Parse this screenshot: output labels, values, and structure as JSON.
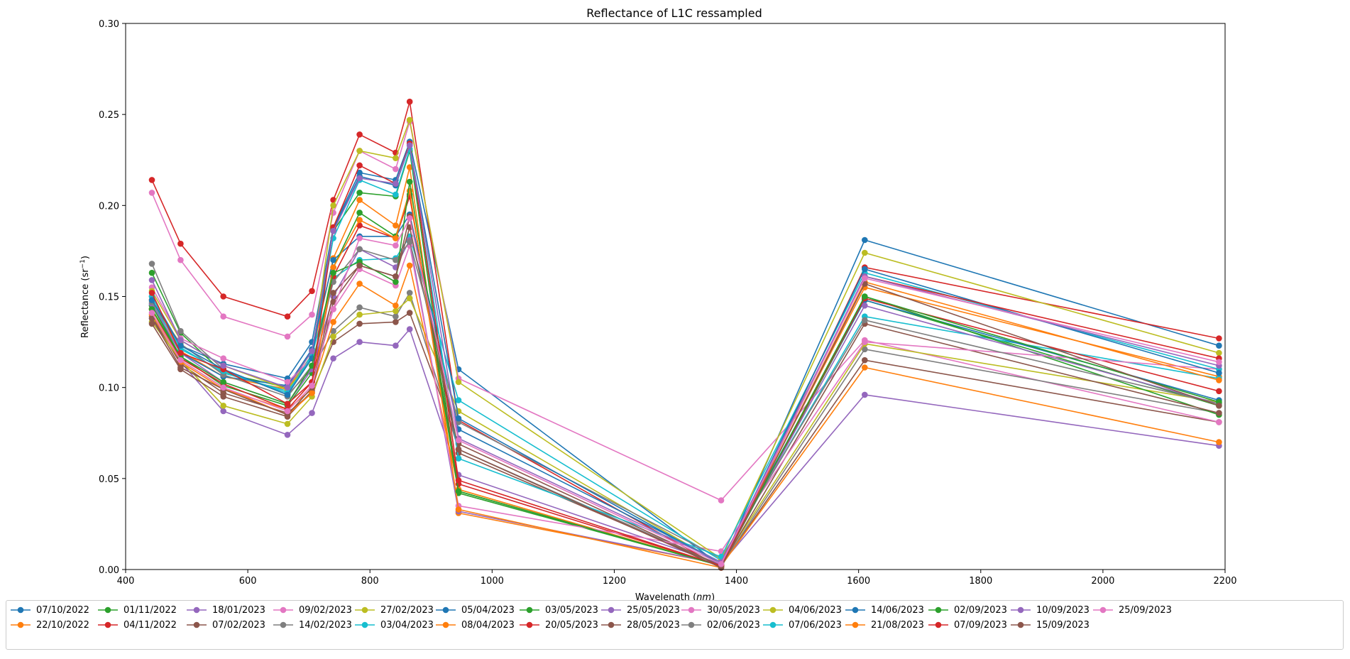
{
  "chart_data": {
    "type": "line",
    "title": "Reflectance of L1C ressampled",
    "xlabel": "Wavelength (nm)",
    "xlabel_parts": {
      "prefix": "Wavelength (",
      "unit": "nm",
      "suffix": ")"
    },
    "ylabel": "Reflectance (sr−1)",
    "ylabel_parts": {
      "prefix": "Reflectance (sr",
      "sup": "−1",
      "suffix": ")"
    },
    "xlim": [
      400,
      2200
    ],
    "ylim": [
      0,
      0.3
    ],
    "xticks": [
      400,
      600,
      800,
      1000,
      1200,
      1400,
      1600,
      1800,
      2000,
      2200
    ],
    "yticks": [
      0.0,
      0.05,
      0.1,
      0.15,
      0.2,
      0.25,
      0.3
    ],
    "xtick_labels": [
      "400",
      "600",
      "800",
      "1000",
      "1200",
      "1400",
      "1600",
      "1800",
      "2000",
      "2200"
    ],
    "ytick_labels": [
      "0.00",
      "0.05",
      "0.10",
      "0.15",
      "0.20",
      "0.25",
      "0.30"
    ],
    "grid": false,
    "legend_position": "below",
    "x": [
      443,
      490,
      560,
      665,
      705,
      740,
      783,
      842,
      865,
      945,
      1375,
      1610,
      2190
    ],
    "series": [
      {
        "name": "07/10/2022",
        "color": "#1f77b4",
        "values": [
          0.15,
          0.123,
          0.113,
          0.105,
          0.125,
          0.188,
          0.218,
          0.214,
          0.235,
          0.11,
          0.002,
          0.181,
          0.123
        ]
      },
      {
        "name": "22/10/2022",
        "color": "#ff7f0e",
        "values": [
          0.148,
          0.12,
          0.106,
          0.099,
          0.118,
          0.171,
          0.203,
          0.189,
          0.221,
          0.031,
          0.003,
          0.155,
          0.106
        ]
      },
      {
        "name": "01/11/2022",
        "color": "#2ca02c",
        "values": [
          0.163,
          0.13,
          0.108,
          0.1,
          0.12,
          0.186,
          0.207,
          0.205,
          0.23,
          0.043,
          0.002,
          0.148,
          0.09
        ]
      },
      {
        "name": "04/11/2022",
        "color": "#d62728",
        "values": [
          0.214,
          0.179,
          0.15,
          0.139,
          0.153,
          0.203,
          0.239,
          0.229,
          0.257,
          0.082,
          0.001,
          0.166,
          0.127
        ]
      },
      {
        "name": "18/01/2023",
        "color": "#9467bd",
        "values": [
          0.138,
          0.114,
          0.087,
          0.074,
          0.086,
          0.116,
          0.125,
          0.123,
          0.132,
          0.052,
          0.003,
          0.096,
          0.068
        ]
      },
      {
        "name": "07/02/2023",
        "color": "#8c564b",
        "values": [
          0.139,
          0.113,
          0.097,
          0.086,
          0.097,
          0.125,
          0.135,
          0.136,
          0.141,
          0.069,
          0.002,
          0.115,
          0.081
        ]
      },
      {
        "name": "09/02/2023",
        "color": "#e377c2",
        "values": [
          0.207,
          0.17,
          0.139,
          0.128,
          0.14,
          0.196,
          0.23,
          0.22,
          0.246,
          0.105,
          0.038,
          0.126,
          0.081
        ]
      },
      {
        "name": "14/02/2023",
        "color": "#7f7f7f",
        "values": [
          0.168,
          0.131,
          0.11,
          0.096,
          0.11,
          0.131,
          0.144,
          0.139,
          0.152,
          0.066,
          0.002,
          0.121,
          0.086
        ]
      },
      {
        "name": "27/02/2023",
        "color": "#bcbd22",
        "values": [
          0.136,
          0.115,
          0.09,
          0.08,
          0.095,
          0.128,
          0.14,
          0.142,
          0.149,
          0.087,
          0.003,
          0.124,
          0.092
        ]
      },
      {
        "name": "03/04/2023",
        "color": "#17becf",
        "values": [
          0.146,
          0.122,
          0.108,
          0.098,
          0.118,
          0.16,
          0.17,
          0.171,
          0.183,
          0.093,
          0.005,
          0.139,
          0.105
        ]
      },
      {
        "name": "05/04/2023",
        "color": "#1f77b4",
        "values": [
          0.145,
          0.119,
          0.106,
          0.101,
          0.121,
          0.17,
          0.183,
          0.183,
          0.195,
          0.077,
          0.004,
          0.148,
          0.093
        ]
      },
      {
        "name": "08/04/2023",
        "color": "#ff7f0e",
        "values": [
          0.143,
          0.114,
          0.099,
          0.088,
          0.099,
          0.136,
          0.157,
          0.145,
          0.167,
          0.044,
          0.002,
          0.111,
          0.07
        ]
      },
      {
        "name": "03/05/2023",
        "color": "#2ca02c",
        "values": [
          0.145,
          0.117,
          0.101,
          0.09,
          0.108,
          0.166,
          0.196,
          0.183,
          0.206,
          0.042,
          0.002,
          0.15,
          0.085
        ]
      },
      {
        "name": "20/05/2023",
        "color": "#d62728",
        "values": [
          0.143,
          0.116,
          0.102,
          0.088,
          0.103,
          0.161,
          0.189,
          0.182,
          0.205,
          0.047,
          0.002,
          0.149,
          0.098
        ]
      },
      {
        "name": "25/05/2023",
        "color": "#9467bd",
        "values": [
          0.146,
          0.119,
          0.103,
          0.091,
          0.11,
          0.15,
          0.176,
          0.166,
          0.181,
          0.032,
          0.003,
          0.145,
          0.091
        ]
      },
      {
        "name": "28/05/2023",
        "color": "#8c564b",
        "values": [
          0.135,
          0.11,
          0.095,
          0.084,
          0.098,
          0.147,
          0.167,
          0.161,
          0.188,
          0.064,
          0.002,
          0.135,
          0.086
        ]
      },
      {
        "name": "30/05/2023",
        "color": "#e377c2",
        "values": [
          0.155,
          0.127,
          0.116,
          0.103,
          0.116,
          0.143,
          0.165,
          0.156,
          0.178,
          0.035,
          0.01,
          0.125,
          0.11
        ]
      },
      {
        "name": "02/06/2023",
        "color": "#7f7f7f",
        "values": [
          0.147,
          0.124,
          0.107,
          0.095,
          0.112,
          0.158,
          0.176,
          0.17,
          0.18,
          0.081,
          0.006,
          0.137,
          0.091
        ]
      },
      {
        "name": "04/06/2023",
        "color": "#bcbd22",
        "values": [
          0.153,
          0.126,
          0.112,
          0.099,
          0.116,
          0.2,
          0.23,
          0.226,
          0.247,
          0.103,
          0.006,
          0.174,
          0.119
        ]
      },
      {
        "name": "07/06/2023",
        "color": "#17becf",
        "values": [
          0.15,
          0.121,
          0.109,
          0.097,
          0.117,
          0.182,
          0.214,
          0.206,
          0.231,
          0.061,
          0.007,
          0.163,
          0.11
        ]
      },
      {
        "name": "14/06/2023",
        "color": "#1f77b4",
        "values": [
          0.148,
          0.123,
          0.11,
          0.096,
          0.116,
          0.187,
          0.216,
          0.211,
          0.233,
          0.083,
          0.003,
          0.165,
          0.108
        ]
      },
      {
        "name": "21/08/2023",
        "color": "#ff7f0e",
        "values": [
          0.14,
          0.115,
          0.1,
          0.085,
          0.097,
          0.166,
          0.192,
          0.182,
          0.208,
          0.033,
          0.001,
          0.158,
          0.104
        ]
      },
      {
        "name": "02/09/2023",
        "color": "#2ca02c",
        "values": [
          0.143,
          0.117,
          0.103,
          0.091,
          0.112,
          0.163,
          0.169,
          0.158,
          0.213,
          0.043,
          0.002,
          0.15,
          0.092
        ]
      },
      {
        "name": "07/09/2023",
        "color": "#d62728",
        "values": [
          0.152,
          0.119,
          0.11,
          0.091,
          0.103,
          0.188,
          0.222,
          0.212,
          0.234,
          0.049,
          0.002,
          0.161,
          0.116
        ]
      },
      {
        "name": "10/09/2023",
        "color": "#9467bd",
        "values": [
          0.159,
          0.126,
          0.112,
          0.1,
          0.12,
          0.186,
          0.215,
          0.212,
          0.233,
          0.072,
          0.004,
          0.161,
          0.112
        ]
      },
      {
        "name": "15/09/2023",
        "color": "#8c564b",
        "values": [
          0.138,
          0.111,
          0.099,
          0.085,
          0.1,
          0.152,
          0.167,
          0.161,
          0.194,
          0.066,
          0.001,
          0.157,
          0.09
        ]
      },
      {
        "name": "25/09/2023",
        "color": "#e377c2",
        "values": [
          0.141,
          0.115,
          0.1,
          0.087,
          0.101,
          0.143,
          0.182,
          0.178,
          0.193,
          0.071,
          0.003,
          0.16,
          0.114
        ]
      }
    ]
  }
}
